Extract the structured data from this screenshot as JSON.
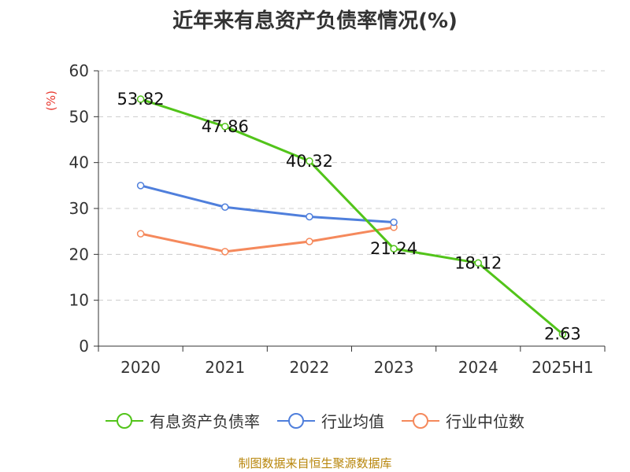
{
  "page": {
    "title": "近年来有息资产负债率情况(%)",
    "source": "制图数据来自恒生聚源数据库"
  },
  "chart_data": {
    "type": "line",
    "title": "近年来有息资产负债率情况(%)",
    "ylabel": "(%)",
    "xlabel": "",
    "categories": [
      "2020",
      "2021",
      "2022",
      "2023",
      "2024",
      "2025H1"
    ],
    "ylim": [
      0,
      60
    ],
    "yticks": [
      0,
      10,
      20,
      30,
      40,
      50,
      60
    ],
    "grid": true,
    "legend_position": "bottom",
    "series": [
      {
        "name": "有息资产负债率",
        "color": "#52c41a",
        "values": [
          53.82,
          47.86,
          40.32,
          21.24,
          18.12,
          2.63
        ],
        "labels": [
          "53.82",
          "47.86",
          "40.32",
          "21.24",
          "18.12",
          "2.63"
        ]
      },
      {
        "name": "行业均值",
        "color": "#4f7fdc",
        "values": [
          35.0,
          30.3,
          28.2,
          27.0,
          null,
          null
        ]
      },
      {
        "name": "行业中位数",
        "color": "#f5895c",
        "values": [
          24.5,
          20.6,
          22.8,
          25.9,
          null,
          null
        ]
      }
    ]
  }
}
